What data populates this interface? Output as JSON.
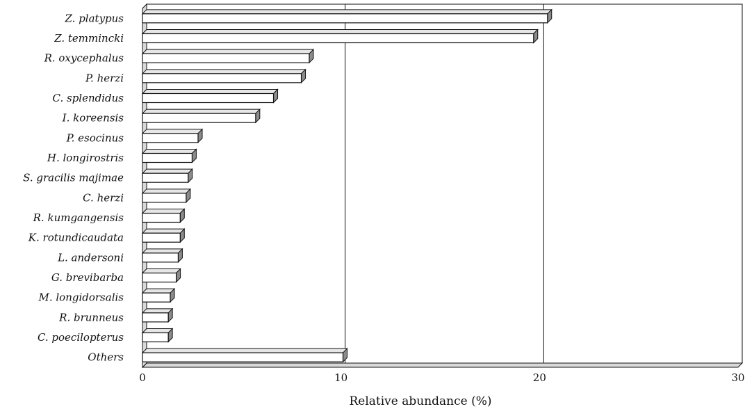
{
  "chart_data": {
    "type": "bar",
    "orientation": "horizontal",
    "categories": [
      "Z. platypus",
      "Z. temmincki",
      "R. oxycephalus",
      "P. herzi",
      "C. splendidus",
      "I. koreensis",
      "P. esocinus",
      "H. longirostris",
      "S. gracilis majimae",
      "C. herzi",
      "R. kumgangensis",
      "K. rotundicaudata",
      "L. andersoni",
      "G. brevibarba",
      "M. longidorsalis",
      "R. brunneus",
      "C. poecilopterus",
      "Others"
    ],
    "values": [
      20.4,
      19.7,
      8.4,
      8.0,
      6.6,
      5.7,
      2.8,
      2.5,
      2.3,
      2.2,
      1.9,
      1.9,
      1.8,
      1.7,
      1.4,
      1.3,
      1.3,
      10.1
    ],
    "xlabel": "Relative abundance (%)",
    "xlim": [
      0,
      30
    ],
    "xticks": [
      "0",
      "10",
      "20",
      "30"
    ],
    "grid": "vertical",
    "style": "3d-bars",
    "bar_color": "#ffffff",
    "edge_color": "#111111"
  }
}
